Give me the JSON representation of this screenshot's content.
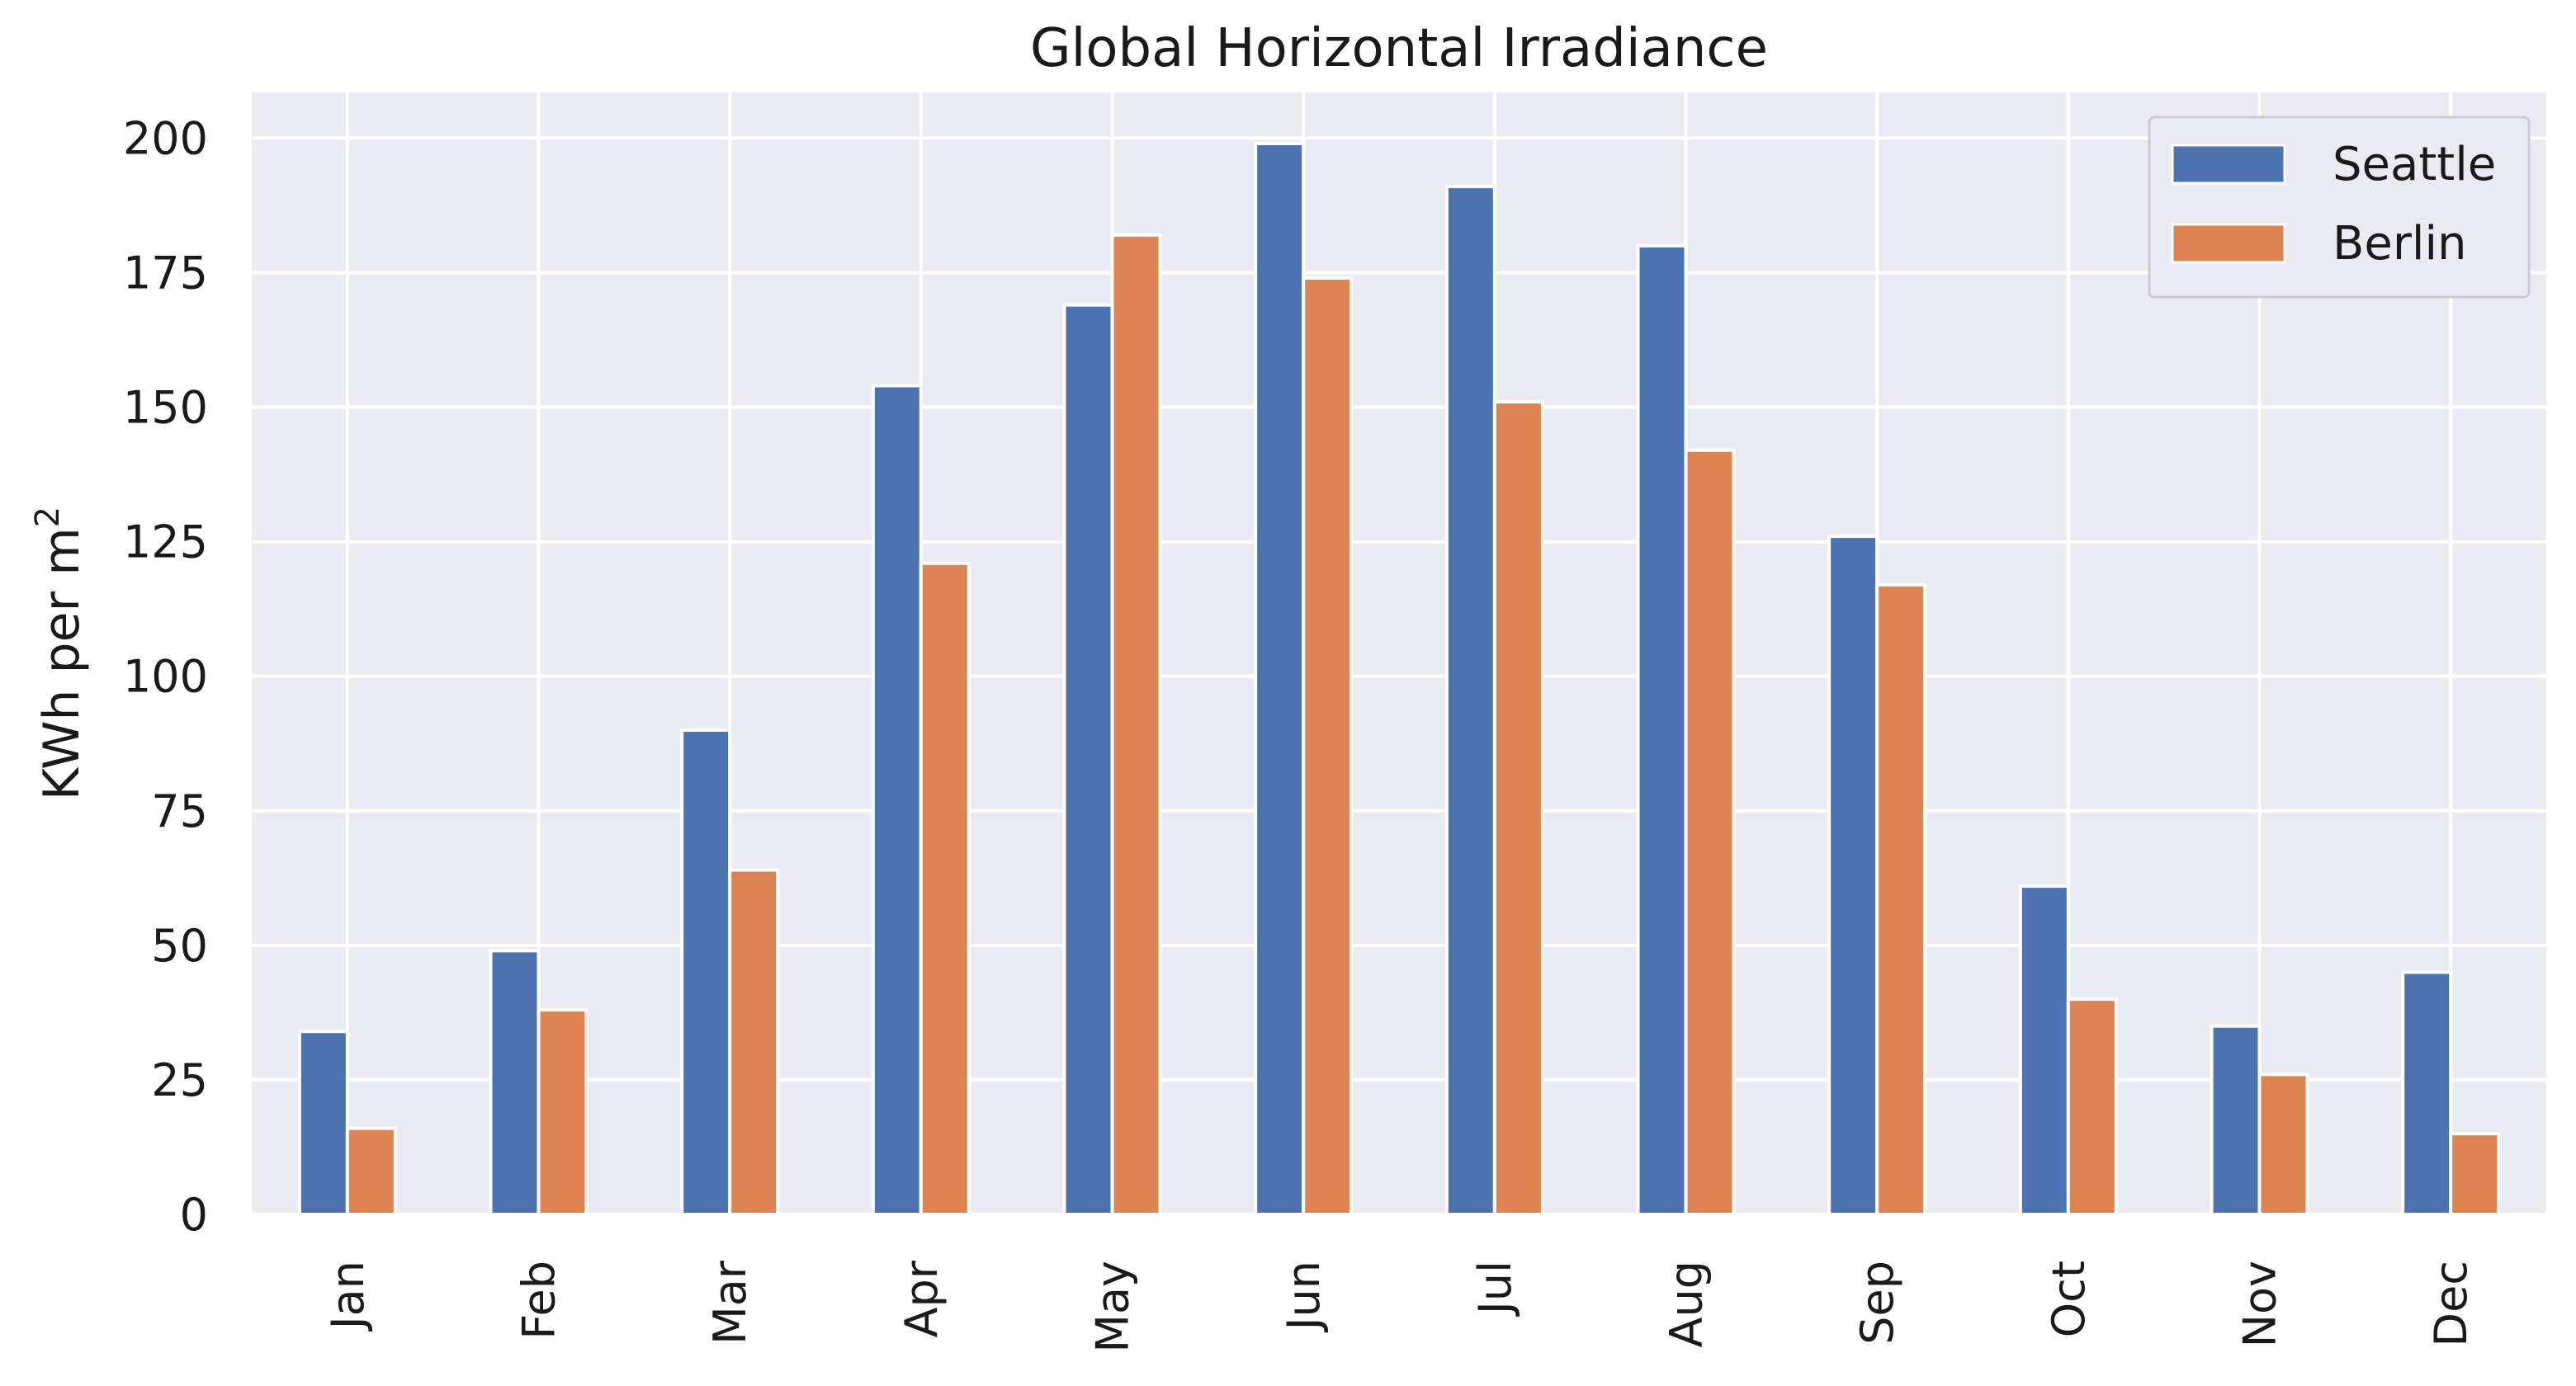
{
  "chart_data": {
    "type": "bar",
    "title": "Global Horizontal Irradiance",
    "xlabel": "",
    "ylabel": "KWh per m",
    "ylabel_superscript": "2",
    "categories": [
      "Jan",
      "Feb",
      "Mar",
      "Apr",
      "May",
      "Jun",
      "Jul",
      "Aug",
      "Sep",
      "Oct",
      "Nov",
      "Dec"
    ],
    "series": [
      {
        "name": "Seattle",
        "color": "#4c72b0",
        "values": [
          34,
          49,
          90,
          154,
          169,
          199,
          191,
          180,
          126,
          61,
          35,
          45
        ]
      },
      {
        "name": "Berlin",
        "color": "#dd8452",
        "values": [
          16,
          38,
          64,
          121,
          182,
          174,
          151,
          142,
          117,
          40,
          26,
          15
        ]
      }
    ],
    "ylim": [
      0,
      208.5
    ],
    "yticks": [
      0,
      25,
      50,
      75,
      100,
      125,
      150,
      175,
      200
    ],
    "grid": true,
    "legend_position": "top-right",
    "background_color": "#eaeaf2"
  }
}
